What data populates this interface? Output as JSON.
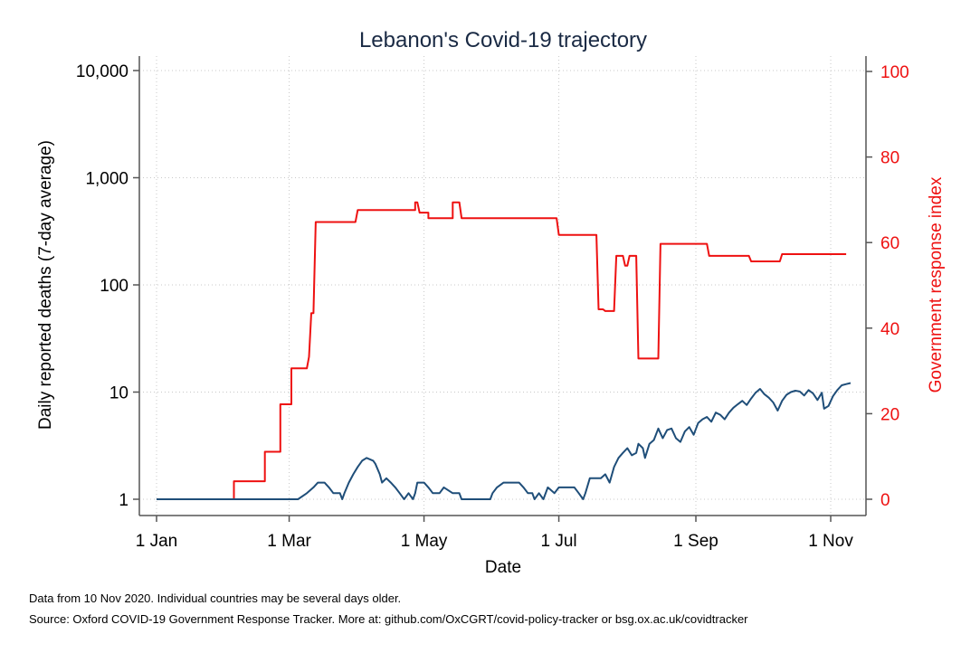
{
  "chart_data": {
    "type": "line",
    "title": "Lebanon's Covid-19 trajectory",
    "xlabel": "Date",
    "ylabel_left": "Daily reported deaths (7-day average)",
    "ylabel_right": "Government response index",
    "x_range": [
      "2020-01-01",
      "2020-11-10"
    ],
    "x_ticks": [
      {
        "date": "2020-01-01",
        "label": "1 Jan"
      },
      {
        "date": "2020-03-01",
        "label": "1 Mar"
      },
      {
        "date": "2020-05-01",
        "label": "1 May"
      },
      {
        "date": "2020-07-01",
        "label": "1 Jul"
      },
      {
        "date": "2020-09-01",
        "label": "1 Sep"
      },
      {
        "date": "2020-11-01",
        "label": "1 Nov"
      }
    ],
    "y_left": {
      "scale": "log",
      "ylim": [
        1,
        10000
      ],
      "ticks": [
        {
          "value": 1,
          "label": "1"
        },
        {
          "value": 10,
          "label": "10"
        },
        {
          "value": 100,
          "label": "100"
        },
        {
          "value": 1000,
          "label": "1,000"
        },
        {
          "value": 10000,
          "label": "10,000"
        }
      ]
    },
    "y_right": {
      "scale": "linear",
      "ylim": [
        0,
        100
      ],
      "ticks": [
        {
          "value": 0,
          "label": "0"
        },
        {
          "value": 20,
          "label": "20"
        },
        {
          "value": 40,
          "label": "40"
        },
        {
          "value": 60,
          "label": "60"
        },
        {
          "value": 80,
          "label": "80"
        },
        {
          "value": 100,
          "label": "100"
        }
      ]
    },
    "grid": true,
    "colors": {
      "deaths": "#1f4e79",
      "response": "#ee1111",
      "right_axis": "#ee1111",
      "title": "#1a2a44"
    },
    "series": [
      {
        "axis": "right",
        "points": [
          [
            "2020-01-01",
            0
          ],
          [
            "2020-02-05",
            0
          ],
          [
            "2020-02-05",
            4.2
          ],
          [
            "2020-02-19",
            4.2
          ],
          [
            "2020-02-19",
            11.1
          ],
          [
            "2020-02-26",
            11.1
          ],
          [
            "2020-02-26",
            22.2
          ],
          [
            "2020-03-02",
            22.2
          ],
          [
            "2020-03-02",
            30.6
          ],
          [
            "2020-03-09",
            30.6
          ],
          [
            "2020-03-10",
            33.3
          ],
          [
            "2020-03-11",
            43.5
          ],
          [
            "2020-03-12",
            43.5
          ],
          [
            "2020-03-13",
            64.8
          ],
          [
            "2020-03-31",
            64.8
          ],
          [
            "2020-04-01",
            67.6
          ],
          [
            "2020-04-27",
            67.6
          ],
          [
            "2020-04-27",
            69.4
          ],
          [
            "2020-04-28",
            69.4
          ],
          [
            "2020-04-29",
            67.0
          ],
          [
            "2020-05-03",
            67.0
          ],
          [
            "2020-05-03",
            65.7
          ],
          [
            "2020-05-14",
            65.7
          ],
          [
            "2020-05-14",
            69.4
          ],
          [
            "2020-05-17",
            69.4
          ],
          [
            "2020-05-18",
            65.7
          ],
          [
            "2020-06-30",
            65.7
          ],
          [
            "2020-07-01",
            61.8
          ],
          [
            "2020-07-18",
            61.8
          ],
          [
            "2020-07-19",
            44.4
          ],
          [
            "2020-07-21",
            44.4
          ],
          [
            "2020-07-22",
            44.0
          ],
          [
            "2020-07-26",
            44.0
          ],
          [
            "2020-07-27",
            56.9
          ],
          [
            "2020-07-30",
            56.9
          ],
          [
            "2020-07-31",
            54.6
          ],
          [
            "2020-08-01",
            54.6
          ],
          [
            "2020-08-02",
            56.9
          ],
          [
            "2020-08-05",
            56.9
          ],
          [
            "2020-08-06",
            32.9
          ],
          [
            "2020-08-15",
            32.9
          ],
          [
            "2020-08-16",
            59.7
          ],
          [
            "2020-08-31",
            59.7
          ],
          [
            "2020-09-06",
            59.7
          ],
          [
            "2020-09-07",
            56.9
          ],
          [
            "2020-09-25",
            56.9
          ],
          [
            "2020-09-26",
            55.6
          ],
          [
            "2020-10-09",
            55.6
          ],
          [
            "2020-10-10",
            57.3
          ],
          [
            "2020-11-08",
            57.3
          ]
        ]
      },
      {
        "axis": "left",
        "points": [
          [
            "2020-01-01",
            1.0
          ],
          [
            "2020-03-05",
            1.0
          ],
          [
            "2020-03-09",
            1.14
          ],
          [
            "2020-03-12",
            1.29
          ],
          [
            "2020-03-14",
            1.43
          ],
          [
            "2020-03-17",
            1.43
          ],
          [
            "2020-03-19",
            1.29
          ],
          [
            "2020-03-21",
            1.14
          ],
          [
            "2020-03-24",
            1.14
          ],
          [
            "2020-03-25",
            1.0
          ],
          [
            "2020-03-26",
            1.14
          ],
          [
            "2020-03-28",
            1.43
          ],
          [
            "2020-03-30",
            1.71
          ],
          [
            "2020-04-01",
            2.0
          ],
          [
            "2020-04-03",
            2.29
          ],
          [
            "2020-04-05",
            2.43
          ],
          [
            "2020-04-08",
            2.29
          ],
          [
            "2020-04-09",
            2.14
          ],
          [
            "2020-04-11",
            1.71
          ],
          [
            "2020-04-12",
            1.43
          ],
          [
            "2020-04-14",
            1.57
          ],
          [
            "2020-04-16",
            1.43
          ],
          [
            "2020-04-18",
            1.29
          ],
          [
            "2020-04-20",
            1.14
          ],
          [
            "2020-04-22",
            1.0
          ],
          [
            "2020-04-24",
            1.14
          ],
          [
            "2020-04-26",
            1.0
          ],
          [
            "2020-04-27",
            1.14
          ],
          [
            "2020-04-28",
            1.43
          ],
          [
            "2020-05-01",
            1.43
          ],
          [
            "2020-05-03",
            1.29
          ],
          [
            "2020-05-05",
            1.14
          ],
          [
            "2020-05-08",
            1.14
          ],
          [
            "2020-05-10",
            1.29
          ],
          [
            "2020-05-14",
            1.14
          ],
          [
            "2020-05-17",
            1.14
          ],
          [
            "2020-05-18",
            1.0
          ],
          [
            "2020-05-31",
            1.0
          ],
          [
            "2020-06-01",
            1.14
          ],
          [
            "2020-06-03",
            1.29
          ],
          [
            "2020-06-06",
            1.43
          ],
          [
            "2020-06-13",
            1.43
          ],
          [
            "2020-06-15",
            1.29
          ],
          [
            "2020-06-17",
            1.14
          ],
          [
            "2020-06-19",
            1.14
          ],
          [
            "2020-06-20",
            1.0
          ],
          [
            "2020-06-22",
            1.14
          ],
          [
            "2020-06-24",
            1.0
          ],
          [
            "2020-06-26",
            1.29
          ],
          [
            "2020-06-29",
            1.14
          ],
          [
            "2020-07-01",
            1.29
          ],
          [
            "2020-07-08",
            1.29
          ],
          [
            "2020-07-10",
            1.14
          ],
          [
            "2020-07-12",
            1.0
          ],
          [
            "2020-07-13",
            1.14
          ],
          [
            "2020-07-15",
            1.57
          ],
          [
            "2020-07-20",
            1.57
          ],
          [
            "2020-07-22",
            1.71
          ],
          [
            "2020-07-24",
            1.43
          ],
          [
            "2020-07-26",
            2.0
          ],
          [
            "2020-07-28",
            2.43
          ],
          [
            "2020-07-30",
            2.71
          ],
          [
            "2020-08-01",
            3.0
          ],
          [
            "2020-08-03",
            2.57
          ],
          [
            "2020-08-05",
            2.71
          ],
          [
            "2020-08-06",
            3.29
          ],
          [
            "2020-08-08",
            3.0
          ],
          [
            "2020-08-09",
            2.43
          ],
          [
            "2020-08-11",
            3.29
          ],
          [
            "2020-08-13",
            3.57
          ],
          [
            "2020-08-15",
            4.57
          ],
          [
            "2020-08-17",
            3.71
          ],
          [
            "2020-08-19",
            4.43
          ],
          [
            "2020-08-21",
            4.57
          ],
          [
            "2020-08-23",
            3.71
          ],
          [
            "2020-08-25",
            3.43
          ],
          [
            "2020-08-27",
            4.29
          ],
          [
            "2020-08-29",
            4.71
          ],
          [
            "2020-08-31",
            4.0
          ],
          [
            "2020-09-02",
            5.14
          ],
          [
            "2020-09-04",
            5.57
          ],
          [
            "2020-09-06",
            5.86
          ],
          [
            "2020-09-08",
            5.29
          ],
          [
            "2020-09-10",
            6.43
          ],
          [
            "2020-09-12",
            6.14
          ],
          [
            "2020-09-14",
            5.57
          ],
          [
            "2020-09-16",
            6.43
          ],
          [
            "2020-09-18",
            7.14
          ],
          [
            "2020-09-20",
            7.71
          ],
          [
            "2020-09-22",
            8.29
          ],
          [
            "2020-09-24",
            7.57
          ],
          [
            "2020-09-26",
            8.71
          ],
          [
            "2020-09-28",
            9.86
          ],
          [
            "2020-09-30",
            10.71
          ],
          [
            "2020-10-02",
            9.57
          ],
          [
            "2020-10-04",
            8.86
          ],
          [
            "2020-10-06",
            8.0
          ],
          [
            "2020-10-08",
            6.71
          ],
          [
            "2020-10-10",
            8.29
          ],
          [
            "2020-10-12",
            9.43
          ],
          [
            "2020-10-14",
            10.0
          ],
          [
            "2020-10-16",
            10.29
          ],
          [
            "2020-10-18",
            10.14
          ],
          [
            "2020-10-20",
            9.29
          ],
          [
            "2020-10-22",
            10.43
          ],
          [
            "2020-10-24",
            9.71
          ],
          [
            "2020-10-26",
            8.43
          ],
          [
            "2020-10-28",
            9.86
          ],
          [
            "2020-10-29",
            7.0
          ],
          [
            "2020-10-31",
            7.43
          ],
          [
            "2020-11-02",
            9.14
          ],
          [
            "2020-11-04",
            10.43
          ],
          [
            "2020-11-06",
            11.57
          ],
          [
            "2020-11-08",
            11.86
          ],
          [
            "2020-11-10",
            12.14
          ]
        ]
      }
    ]
  },
  "footer": {
    "note": "Data from 10 Nov 2020. Individual countries may be several days older.",
    "source": "Source: Oxford COVID-19 Government Response Tracker. More at: github.com/OxCGRT/covid-policy-tracker or bsg.ox.ac.uk/covidtracker"
  }
}
